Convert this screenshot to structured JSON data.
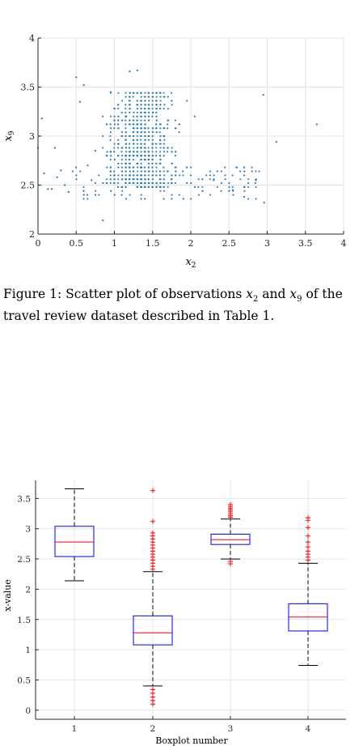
{
  "caption": {
    "label": "Figure 1:",
    "part1": "Scatter plot of observations",
    "var_a": "x",
    "var_a_sub": "2",
    "and_text": "and",
    "var_b": "x",
    "var_b_sub": "9",
    "part2": "of the travel review dataset described in Table 1."
  },
  "chart_data": [
    {
      "type": "scatter",
      "title": "",
      "xlabel": "x",
      "xlabel_sub": "2",
      "ylabel": "x",
      "ylabel_sub": "9",
      "xlim": [
        0,
        4
      ],
      "ylim": [
        2,
        4
      ],
      "xticks": [
        "0",
        "0.5",
        "1",
        "1.5",
        "2",
        "2.5",
        "3",
        "3.5",
        "4"
      ],
      "yticks": [
        "2",
        "2.5",
        "3",
        "3.5",
        "4"
      ],
      "grid": true,
      "marker_color": "#1f77b4",
      "points": [
        [
          0.0,
          2.88
        ],
        [
          0.05,
          3.18
        ],
        [
          0.08,
          2.62
        ],
        [
          0.13,
          2.46
        ],
        [
          0.18,
          2.46
        ],
        [
          0.22,
          2.88
        ],
        [
          0.25,
          2.58
        ],
        [
          0.3,
          2.65
        ],
        [
          0.35,
          2.5
        ],
        [
          0.4,
          2.43
        ],
        [
          0.5,
          3.6
        ],
        [
          0.55,
          3.35
        ],
        [
          0.6,
          3.52
        ],
        [
          0.65,
          2.7
        ],
        [
          0.7,
          2.55
        ],
        [
          0.75,
          2.85
        ],
        [
          0.85,
          2.14
        ],
        [
          0.95,
          3.45
        ],
        [
          1.2,
          3.66
        ],
        [
          1.3,
          3.67
        ],
        [
          1.95,
          3.36
        ],
        [
          2.05,
          3.2
        ],
        [
          2.3,
          2.55
        ],
        [
          2.55,
          2.45
        ],
        [
          2.7,
          2.38
        ],
        [
          2.85,
          2.55
        ],
        [
          2.95,
          3.42
        ],
        [
          2.96,
          2.32
        ],
        [
          3.12,
          2.94
        ],
        [
          3.65,
          3.12
        ]
      ]
    },
    {
      "type": "boxplot",
      "title": "",
      "xlabel": "Boxplot number",
      "ylabel": "x-value",
      "ylim": [
        -0.15,
        3.8
      ],
      "yticks": [
        "0",
        "0.5",
        "1",
        "1.5",
        "2",
        "2.5",
        "3",
        "3.5"
      ],
      "grid": true,
      "box_color": "#0000ff",
      "median_color": "#ff0000",
      "outlier_color": "#ff0000",
      "categories": [
        "1",
        "2",
        "3",
        "4"
      ],
      "boxes": [
        {
          "name": "1",
          "q1": 2.54,
          "median": 2.78,
          "q3": 3.04,
          "whisker_low": 2.14,
          "whisker_high": 3.66,
          "outliers": []
        },
        {
          "name": "2",
          "q1": 1.08,
          "median": 1.28,
          "q3": 1.56,
          "whisker_low": 0.4,
          "whisker_high": 2.29,
          "outliers": [
            0.1,
            0.16,
            0.22,
            0.28,
            0.34,
            2.33,
            2.38,
            2.43,
            2.48,
            2.53,
            2.58,
            2.63,
            2.68,
            2.73,
            2.78,
            2.83,
            2.88,
            2.93,
            3.12,
            3.63
          ]
        },
        {
          "name": "3",
          "q1": 2.74,
          "median": 2.82,
          "q3": 2.91,
          "whisker_low": 2.5,
          "whisker_high": 3.16,
          "outliers": [
            2.42,
            2.46,
            3.19,
            3.22,
            3.25,
            3.28,
            3.31,
            3.34,
            3.37,
            3.4
          ]
        },
        {
          "name": "4",
          "q1": 1.31,
          "median": 1.54,
          "q3": 1.76,
          "whisker_low": 0.74,
          "whisker_high": 2.43,
          "outliers": [
            2.48,
            2.53,
            2.58,
            2.63,
            2.7,
            2.78,
            2.88,
            3.02,
            3.14,
            3.18
          ]
        }
      ]
    }
  ]
}
